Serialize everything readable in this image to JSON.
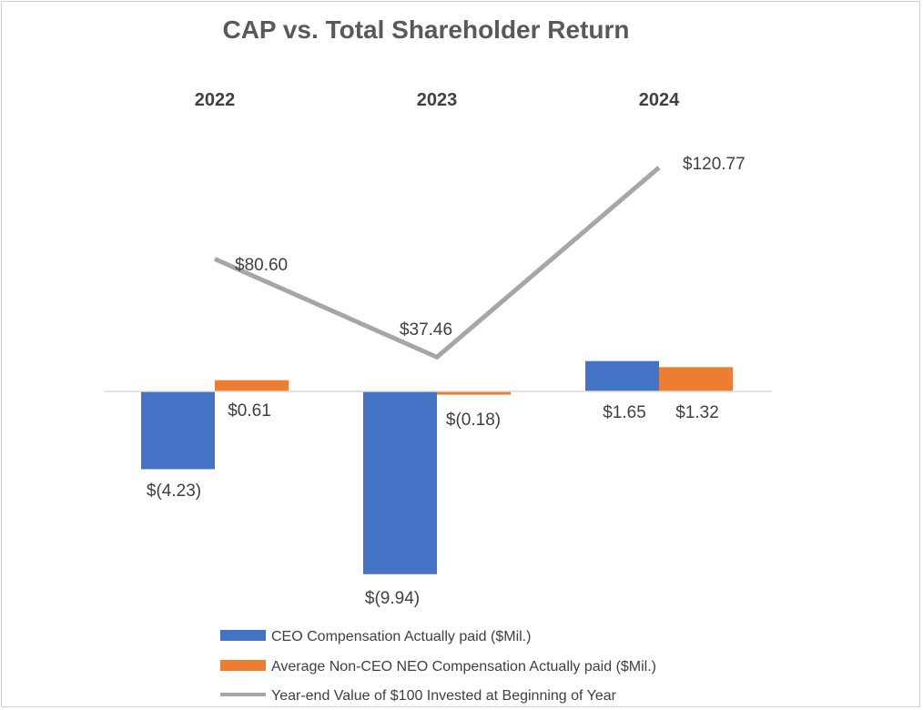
{
  "chart_data": {
    "type": "bar",
    "title": "CAP vs. Total Shareholder Return",
    "categories": [
      "2022",
      "2023",
      "2024"
    ],
    "series": [
      {
        "name": "CEO Compensation Actually paid ($Mil.)",
        "type": "bar",
        "color": "#4472c4",
        "values": [
          -4.23,
          -9.94,
          1.65
        ],
        "labels": [
          "$(4.23)",
          "$(9.94)",
          "$1.65"
        ]
      },
      {
        "name": "Average Non-CEO NEO Compensation Actually paid ($Mil.)",
        "type": "bar",
        "color": "#ed7d31",
        "values": [
          0.61,
          -0.18,
          1.32
        ],
        "labels": [
          "$0.61",
          "$(0.18)",
          "$1.32"
        ]
      },
      {
        "name": "Year-end Value of $100 Invested at Beginning of Year",
        "type": "line",
        "color": "#a6a6a6",
        "values": [
          80.6,
          37.46,
          120.77
        ],
        "labels": [
          "$80.60",
          "$37.46",
          "$120.77"
        ]
      }
    ],
    "legend_position": "bottom"
  }
}
